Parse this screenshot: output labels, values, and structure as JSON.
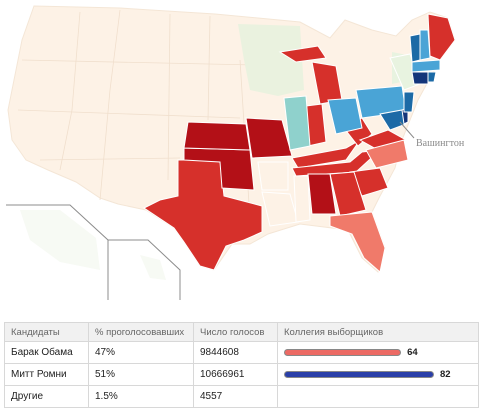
{
  "map": {
    "callout_label": "Вашингтон"
  },
  "colors": {
    "obama_bar": "#ec6a64",
    "romney_bar": "#2a3fa8",
    "state_base": "#fdf2e6",
    "red_dark": "#b31017",
    "red": "#d6302b",
    "red_light": "#f07a6a",
    "blue_light": "#8fd1cc",
    "blue": "#4aa4d6",
    "blue_dark": "#1c6aa6",
    "navy": "#13357a"
  },
  "table": {
    "headers": [
      "Кандидаты",
      "% проголосовавших",
      "Число голосов",
      "Коллегия выборщиков"
    ],
    "rows": [
      {
        "name": "Барак Обама",
        "pct": "47%",
        "votes": "9844608",
        "electors": "64",
        "electors_value": 64,
        "bar_color": "#ec6a64"
      },
      {
        "name": "Митт Ромни",
        "pct": "51%",
        "votes": "10666961",
        "electors": "82",
        "electors_value": 82,
        "bar_color": "#2a3fa8"
      },
      {
        "name": "Другие",
        "pct": "1.5%",
        "votes": "4557",
        "electors": "",
        "electors_value": 0,
        "bar_color": ""
      }
    ]
  }
}
